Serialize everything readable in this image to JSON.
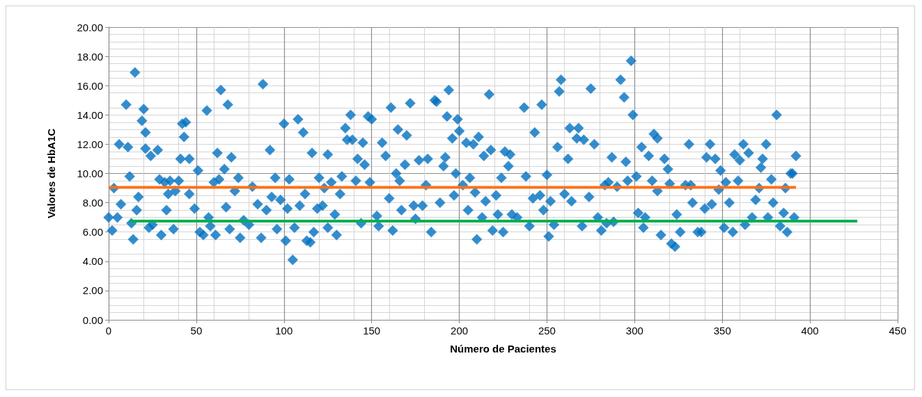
{
  "chart_data": {
    "type": "scatter",
    "xlabel": "Número de Pacientes",
    "ylabel": "Valores de HbA1C",
    "marker": "diamond",
    "grid": true,
    "xlim": [
      0,
      450
    ],
    "xticks": [
      0,
      50,
      100,
      150,
      200,
      250,
      300,
      350,
      400,
      450
    ],
    "ylim": [
      0,
      20
    ],
    "yticks": [
      {
        "value": 0,
        "label": "0.00"
      },
      {
        "value": 2,
        "label": "2.00"
      },
      {
        "value": 4,
        "label": "4.00"
      },
      {
        "value": 6,
        "label": "6.00"
      },
      {
        "value": 8,
        "label": "8.00"
      },
      {
        "value": 10,
        "label": "10.00"
      },
      {
        "value": 12,
        "label": "12.00"
      },
      {
        "value": 14,
        "label": "14.00"
      },
      {
        "value": 16,
        "label": "16.00"
      },
      {
        "value": 18,
        "label": "18.00"
      },
      {
        "value": 20,
        "label": "20.00"
      }
    ],
    "series": [
      {
        "color": "#0070c0",
        "x": [
          0,
          2,
          3,
          5,
          6,
          7,
          10,
          11,
          12,
          13,
          14,
          15,
          16,
          17,
          19,
          20,
          21,
          21,
          23,
          24,
          25,
          28,
          29,
          30,
          32,
          33,
          34,
          35,
          37,
          38,
          40,
          41,
          42,
          43,
          44,
          46,
          46,
          49,
          51,
          52,
          54,
          56,
          57,
          58,
          60,
          61,
          62,
          63,
          64,
          66,
          67,
          68,
          69,
          70,
          72,
          74,
          75,
          77,
          80,
          82,
          85,
          87,
          88,
          90,
          92,
          93,
          95,
          96,
          98,
          100,
          101,
          102,
          103,
          105,
          106,
          108,
          109,
          111,
          112,
          113,
          115,
          116,
          117,
          119,
          120,
          122,
          123,
          125,
          125,
          127,
          129,
          130,
          132,
          133,
          135,
          136,
          138,
          139,
          141,
          142,
          144,
          145,
          146,
          148,
          149,
          150,
          153,
          154,
          156,
          158,
          160,
          161,
          162,
          164,
          165,
          166,
          167,
          169,
          170,
          172,
          174,
          175,
          177,
          179,
          181,
          182,
          184,
          186,
          187,
          189,
          191,
          192,
          193,
          194,
          196,
          197,
          198,
          199,
          200,
          202,
          204,
          205,
          206,
          208,
          209,
          210,
          211,
          213,
          214,
          215,
          217,
          218,
          219,
          221,
          222,
          224,
          225,
          226,
          228,
          229,
          230,
          233,
          237,
          238,
          240,
          242,
          243,
          246,
          247,
          248,
          250,
          251,
          252,
          254,
          256,
          257,
          258,
          260,
          262,
          263,
          264,
          267,
          268,
          270,
          271,
          274,
          275,
          277,
          279,
          281,
          283,
          284,
          285,
          287,
          288,
          290,
          292,
          294,
          295,
          296,
          298,
          299,
          301,
          302,
          304,
          305,
          306,
          308,
          310,
          311,
          313,
          313,
          315,
          317,
          319,
          320,
          321,
          323,
          324,
          326,
          329,
          331,
          332,
          333,
          336,
          338,
          340,
          341,
          343,
          344,
          346,
          348,
          349,
          351,
          352,
          354,
          356,
          357,
          359,
          360,
          362,
          363,
          365,
          367,
          369,
          371,
          372,
          373,
          375,
          376,
          378,
          379,
          381,
          383,
          385,
          386,
          387,
          389,
          390,
          391,
          392
        ],
        "values": [
          7.0,
          6.1,
          9.0,
          7.0,
          12.0,
          7.9,
          14.7,
          11.8,
          9.8,
          6.6,
          5.5,
          16.9,
          7.5,
          8.4,
          13.6,
          14.4,
          12.8,
          11.7,
          6.3,
          11.2,
          6.5,
          11.6,
          9.6,
          5.8,
          9.4,
          7.5,
          8.6,
          9.5,
          6.2,
          8.8,
          9.5,
          11.0,
          13.4,
          12.5,
          13.5,
          11.0,
          8.6,
          7.6,
          10.2,
          6.0,
          5.8,
          14.3,
          7.0,
          6.4,
          9.4,
          5.8,
          11.4,
          9.6,
          15.7,
          10.3,
          7.7,
          14.7,
          6.2,
          11.1,
          8.8,
          9.7,
          5.6,
          6.8,
          6.5,
          9.1,
          7.9,
          5.6,
          16.1,
          7.5,
          11.6,
          8.4,
          9.7,
          6.2,
          8.2,
          13.4,
          5.4,
          7.6,
          9.6,
          4.1,
          6.3,
          13.7,
          7.8,
          12.8,
          8.6,
          5.4,
          5.3,
          11.4,
          6.0,
          7.6,
          9.7,
          7.8,
          9.0,
          6.3,
          11.3,
          9.4,
          7.2,
          5.8,
          8.6,
          9.8,
          13.1,
          12.3,
          14.0,
          12.3,
          9.5,
          11.0,
          6.6,
          12.1,
          10.6,
          13.9,
          9.4,
          13.7,
          7.1,
          6.4,
          12.1,
          11.2,
          8.3,
          14.5,
          6.1,
          10.0,
          13.0,
          9.5,
          7.5,
          10.6,
          12.6,
          14.8,
          7.8,
          6.9,
          10.9,
          7.8,
          9.2,
          11.0,
          6.0,
          15.0,
          14.9,
          8.0,
          10.5,
          11.1,
          13.9,
          15.7,
          12.4,
          8.5,
          10.0,
          13.7,
          12.9,
          9.2,
          12.1,
          7.5,
          9.7,
          12.0,
          8.7,
          5.5,
          12.5,
          7.0,
          11.2,
          8.1,
          15.4,
          11.6,
          6.1,
          8.5,
          7.2,
          9.7,
          6.0,
          11.5,
          10.5,
          11.3,
          7.2,
          7.0,
          14.5,
          9.8,
          6.4,
          8.3,
          12.8,
          8.5,
          14.7,
          7.5,
          9.9,
          5.7,
          8.1,
          6.5,
          11.8,
          15.6,
          16.4,
          8.6,
          11.0,
          13.1,
          8.1,
          12.4,
          13.1,
          6.4,
          12.3,
          8.4,
          15.8,
          12.0,
          7.0,
          6.1,
          9.2,
          6.6,
          9.4,
          11.1,
          6.7,
          9.1,
          16.4,
          15.2,
          10.8,
          9.5,
          17.7,
          14.0,
          9.8,
          7.3,
          11.8,
          6.3,
          7.0,
          11.2,
          9.5,
          12.7,
          12.4,
          8.8,
          5.8,
          11.0,
          10.3,
          9.3,
          5.2,
          5.0,
          7.2,
          6.0,
          9.2,
          12.0,
          9.2,
          8.0,
          6.0,
          6.0,
          7.6,
          11.1,
          12.0,
          7.9,
          11.0,
          8.9,
          10.2,
          6.3,
          9.4,
          8.0,
          6.0,
          11.3,
          9.5,
          10.9,
          12.0,
          6.5,
          11.4,
          7.0,
          8.2,
          9.0,
          10.4,
          11.0,
          12.0,
          7.0,
          9.6,
          8.0,
          14.0,
          6.4,
          7.3,
          9.0,
          6.0,
          10.0,
          10.0,
          7.0,
          11.2
        ]
      },
      {
        "type": "line",
        "marker": "none",
        "color": "#ff7017",
        "x": [
          0,
          392
        ],
        "values": [
          9.05,
          9.05
        ]
      },
      {
        "type": "line",
        "marker": "none",
        "color": "#00b050",
        "x": [
          12,
          427
        ],
        "values": [
          6.75,
          6.75
        ]
      }
    ]
  }
}
